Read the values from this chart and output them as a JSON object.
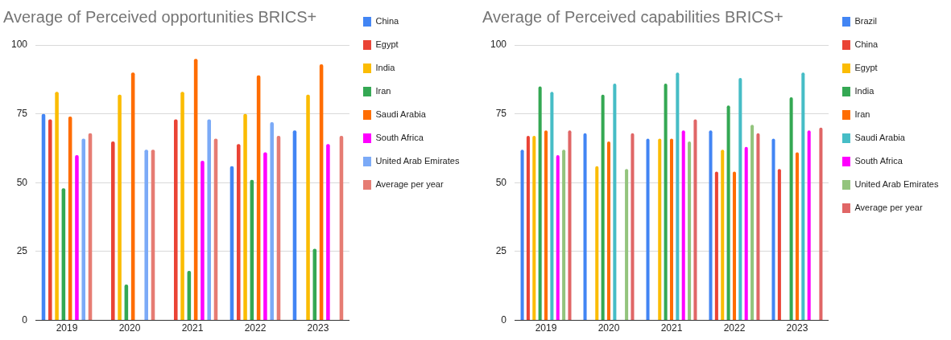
{
  "chart_data": [
    {
      "type": "bar",
      "title": "Average of Perceived opportunities BRICS+",
      "categories": [
        "2019",
        "2020",
        "2021",
        "2022",
        "2023"
      ],
      "series": [
        {
          "name": "China",
          "color": "#4285f4",
          "values": [
            75,
            null,
            null,
            56,
            69
          ]
        },
        {
          "name": "Egypt",
          "color": "#ea4335",
          "values": [
            73,
            65,
            73,
            64,
            null
          ]
        },
        {
          "name": "India",
          "color": "#fbbc04",
          "values": [
            83,
            82,
            83,
            75,
            82
          ]
        },
        {
          "name": "Iran",
          "color": "#34a853",
          "values": [
            48,
            13,
            18,
            51,
            26
          ]
        },
        {
          "name": "Saudi Arabia",
          "color": "#ff6d01",
          "values": [
            74,
            90,
            95,
            89,
            93
          ]
        },
        {
          "name": "South Africa",
          "color": "#ff00ff",
          "values": [
            60,
            null,
            58,
            61,
            64
          ]
        },
        {
          "name": "United Arab Emirates",
          "color": "#7baaf7",
          "values": [
            66,
            62,
            73,
            72,
            null
          ]
        },
        {
          "name": "Average per year",
          "color": "#e67c73",
          "values": [
            68,
            62,
            66,
            67,
            67
          ]
        }
      ],
      "ylim": [
        0,
        100
      ],
      "yticks": [
        0,
        25,
        50,
        75,
        100
      ],
      "grid": "y",
      "legend": "right"
    },
    {
      "type": "bar",
      "title": "Average of Perceived capabilities BRICS+",
      "categories": [
        "2019",
        "2020",
        "2021",
        "2022",
        "2023"
      ],
      "series": [
        {
          "name": "Brazil",
          "color": "#4285f4",
          "values": [
            62,
            68,
            66,
            69,
            66
          ]
        },
        {
          "name": "China",
          "color": "#ea4335",
          "values": [
            67,
            null,
            null,
            54,
            55
          ]
        },
        {
          "name": "Egypt",
          "color": "#fbbc04",
          "values": [
            67,
            56,
            66,
            62,
            null
          ]
        },
        {
          "name": "India",
          "color": "#34a853",
          "values": [
            85,
            82,
            86,
            78,
            81
          ]
        },
        {
          "name": "Iran",
          "color": "#ff6d01",
          "values": [
            69,
            65,
            66,
            54,
            61
          ]
        },
        {
          "name": "Saudi Arabia",
          "color": "#46bdc6",
          "values": [
            83,
            86,
            90,
            88,
            90
          ]
        },
        {
          "name": "South Africa",
          "color": "#ff00ff",
          "values": [
            60,
            null,
            69,
            63,
            69
          ]
        },
        {
          "name": "United Arab Emirates",
          "color": "#93c47d",
          "values": [
            62,
            55,
            65,
            71,
            null
          ]
        },
        {
          "name": "Average per year",
          "color": "#e06666",
          "values": [
            69,
            68,
            73,
            68,
            70
          ]
        }
      ],
      "ylim": [
        0,
        100
      ],
      "yticks": [
        0,
        25,
        50,
        75,
        100
      ],
      "grid": "y",
      "legend": "right"
    }
  ]
}
